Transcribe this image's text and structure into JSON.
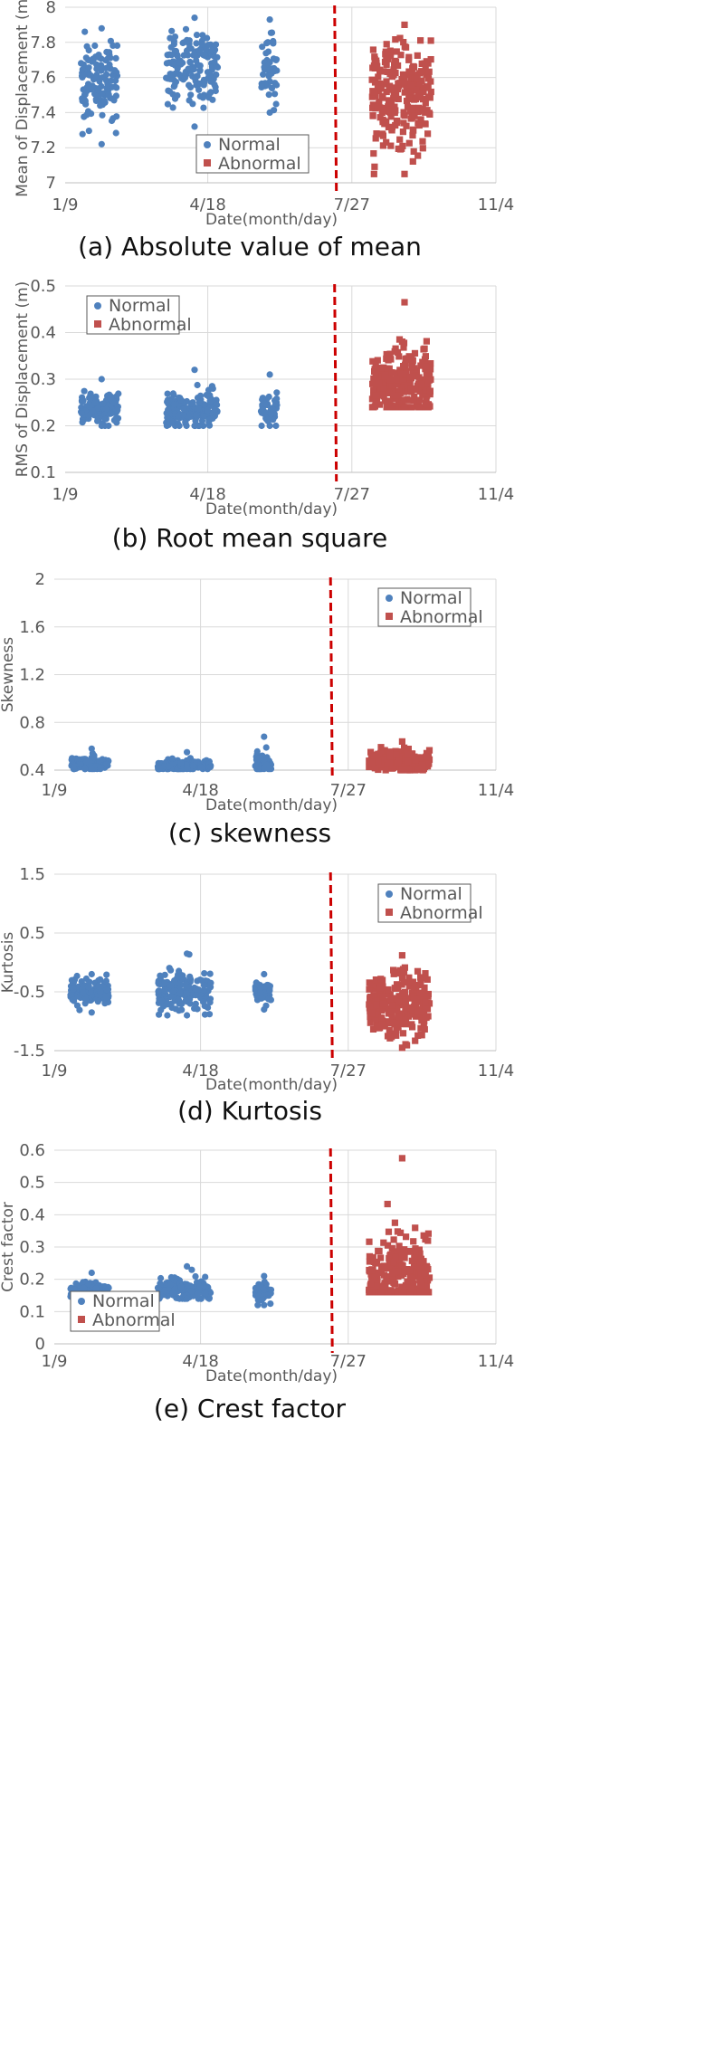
{
  "figure": {
    "colors": {
      "normal": "#4f81bd",
      "abnormal": "#c0504d",
      "divider": "#cc0000",
      "grid": "#d9d9d9",
      "text": "#595959"
    },
    "legend": {
      "normal": "Normal",
      "abnormal": "Abnormal"
    }
  },
  "chart_data": [
    {
      "id": "a",
      "type": "scatter",
      "caption": "(a) Absolute value of mean",
      "xlabel": "Date(month/day)",
      "ylabel": "Mean of Displacement (m)",
      "x_ticks": [
        "1/9",
        "4/18",
        "7/27",
        "11/4"
      ],
      "ylim": [
        7,
        8
      ],
      "y_ticks": [
        "7",
        "7.2",
        "7.4",
        "7.6",
        "7.8",
        "8"
      ],
      "legend_position": "bottom-center",
      "divider_date": "7/15",
      "grid": true,
      "series": [
        {
          "name": "Normal",
          "marker": "circle",
          "clusters": [
            {
              "x_from": "1/20",
              "x_to": "2/15",
              "y_min": 7.22,
              "y_max": 7.88,
              "y_center": 7.58
            },
            {
              "x_from": "3/20",
              "x_to": "4/25",
              "y_min": 7.32,
              "y_max": 7.94,
              "y_center": 7.64
            },
            {
              "x_from": "5/25",
              "x_to": "6/5",
              "y_min": 7.4,
              "y_max": 7.93,
              "y_center": 7.65
            }
          ]
        },
        {
          "name": "Abnormal",
          "marker": "square",
          "clusters": [
            {
              "x_from": "8/10",
              "x_to": "9/20",
              "y_min": 7.05,
              "y_max": 7.9,
              "y_center": 7.5
            }
          ]
        }
      ]
    },
    {
      "id": "b",
      "type": "scatter",
      "caption": "(b) Root mean square",
      "xlabel": "Date(month/day)",
      "ylabel": "RMS of Displacement (m)",
      "x_ticks": [
        "1/9",
        "4/18",
        "7/27",
        "11/4"
      ],
      "ylim": [
        0.1,
        0.5
      ],
      "y_ticks": [
        "0.1",
        "0.2",
        "0.3",
        "0.4",
        "0.5"
      ],
      "legend_position": "top-left",
      "divider_date": "7/15",
      "grid": true,
      "series": [
        {
          "name": "Normal",
          "marker": "circle",
          "clusters": [
            {
              "x_from": "1/20",
              "x_to": "2/15",
              "y_min": 0.2,
              "y_max": 0.3,
              "y_center": 0.235
            },
            {
              "x_from": "3/20",
              "x_to": "4/25",
              "y_min": 0.2,
              "y_max": 0.32,
              "y_center": 0.232
            },
            {
              "x_from": "5/25",
              "x_to": "6/5",
              "y_min": 0.2,
              "y_max": 0.31,
              "y_center": 0.235
            }
          ]
        },
        {
          "name": "Abnormal",
          "marker": "square",
          "clusters": [
            {
              "x_from": "8/10",
              "x_to": "9/20",
              "y_min": 0.24,
              "y_max": 0.465,
              "y_center": 0.285
            }
          ]
        }
      ]
    },
    {
      "id": "c",
      "type": "scatter",
      "caption": "(c) skewness",
      "xlabel": "Date(month/day)",
      "ylabel": "Skewness",
      "x_ticks": [
        "1/9",
        "4/18",
        "7/27",
        "11/4"
      ],
      "ylim": [
        0.4,
        2
      ],
      "y_ticks": [
        "0.4",
        "0.8",
        "1.2",
        "1.6",
        "2"
      ],
      "legend_position": "top-right",
      "divider_date": "7/15",
      "grid": true,
      "series": [
        {
          "name": "Normal",
          "marker": "circle",
          "clusters": [
            {
              "x_from": "1/20",
              "x_to": "2/15",
              "y_min": 0.41,
              "y_max": 0.58,
              "y_center": 0.45
            },
            {
              "x_from": "3/20",
              "x_to": "4/25",
              "y_min": 0.41,
              "y_max": 0.55,
              "y_center": 0.44
            },
            {
              "x_from": "5/25",
              "x_to": "6/5",
              "y_min": 0.41,
              "y_max": 0.68,
              "y_center": 0.46
            }
          ]
        },
        {
          "name": "Abnormal",
          "marker": "square",
          "clusters": [
            {
              "x_from": "8/10",
              "x_to": "9/20",
              "y_min": 0.4,
              "y_max": 0.64,
              "y_center": 0.48
            }
          ]
        }
      ]
    },
    {
      "id": "d",
      "type": "scatter",
      "caption": "(d) Kurtosis",
      "xlabel": "Date(month/day)",
      "ylabel": "Kurtosis",
      "x_ticks": [
        "1/9",
        "4/18",
        "7/27",
        "11/4"
      ],
      "ylim": [
        -1.5,
        1.5
      ],
      "y_ticks": [
        "-1.5",
        "-0.5",
        "0.5",
        "1.5"
      ],
      "legend_position": "top-right",
      "divider_date": "7/15",
      "grid": true,
      "series": [
        {
          "name": "Normal",
          "marker": "circle",
          "clusters": [
            {
              "x_from": "1/20",
              "x_to": "2/15",
              "y_min": -0.85,
              "y_max": -0.2,
              "y_center": -0.5
            },
            {
              "x_from": "3/20",
              "x_to": "4/25",
              "y_min": -0.9,
              "y_max": 0.15,
              "y_center": -0.5
            },
            {
              "x_from": "5/25",
              "x_to": "6/5",
              "y_min": -0.8,
              "y_max": -0.2,
              "y_center": -0.5
            }
          ]
        },
        {
          "name": "Abnormal",
          "marker": "square",
          "clusters": [
            {
              "x_from": "8/10",
              "x_to": "9/20",
              "y_min": -1.45,
              "y_max": 0.12,
              "y_center": -0.75
            }
          ]
        }
      ]
    },
    {
      "id": "e",
      "type": "scatter",
      "caption": "(e) Crest factor",
      "xlabel": "Date(month/day)",
      "ylabel": "Crest factor",
      "x_ticks": [
        "1/9",
        "4/18",
        "7/27",
        "11/4"
      ],
      "ylim": [
        0,
        0.6
      ],
      "y_ticks": [
        "0",
        "0.1",
        "0.2",
        "0.3",
        "0.4",
        "0.5",
        "0.6"
      ],
      "legend_position": "bottom-left",
      "divider_date": "7/15",
      "grid": true,
      "series": [
        {
          "name": "Normal",
          "marker": "circle",
          "clusters": [
            {
              "x_from": "1/20",
              "x_to": "2/15",
              "y_min": 0.13,
              "y_max": 0.22,
              "y_center": 0.165
            },
            {
              "x_from": "3/20",
              "x_to": "4/25",
              "y_min": 0.14,
              "y_max": 0.24,
              "y_center": 0.165
            },
            {
              "x_from": "5/25",
              "x_to": "6/5",
              "y_min": 0.12,
              "y_max": 0.21,
              "y_center": 0.16
            }
          ]
        },
        {
          "name": "Abnormal",
          "marker": "square",
          "clusters": [
            {
              "x_from": "8/10",
              "x_to": "9/20",
              "y_min": 0.16,
              "y_max": 0.575,
              "y_center": 0.2
            }
          ]
        }
      ]
    }
  ]
}
